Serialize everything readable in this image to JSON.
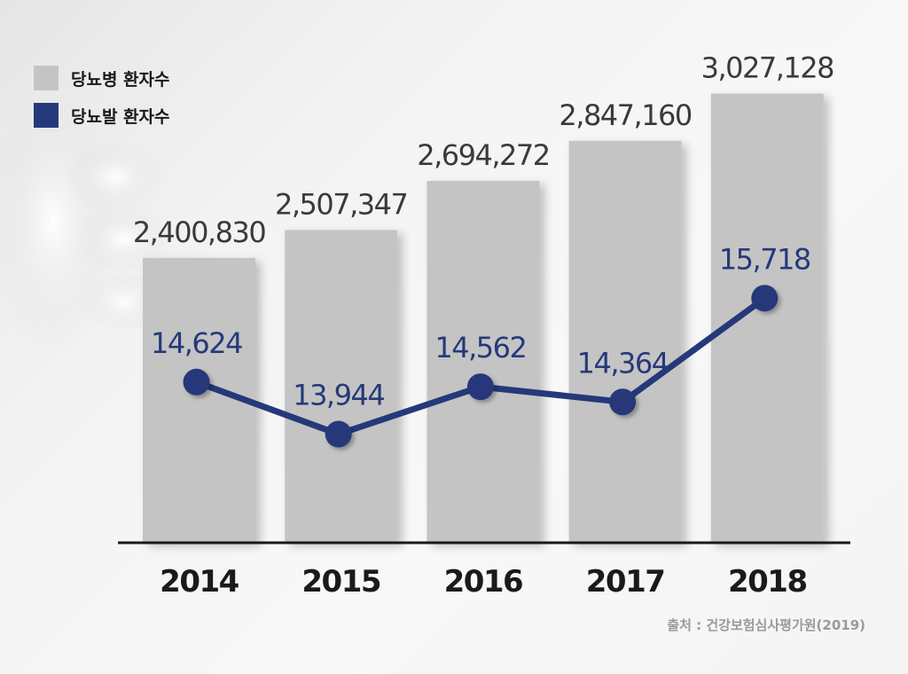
{
  "chart_data": {
    "type": "bar",
    "categories": [
      "2014",
      "2015",
      "2016",
      "2017",
      "2018"
    ],
    "series": [
      {
        "name": "당뇨병 환자수",
        "type": "bar",
        "values": [
          2400830,
          2507347,
          2694272,
          2847160,
          3027128
        ],
        "labels": [
          "2,400,830",
          "2,507,347",
          "2,694,272",
          "2,847,160",
          "3,027,128"
        ],
        "color": "#c4c4c4"
      },
      {
        "name": "당뇨발 환자수",
        "type": "line",
        "values": [
          14624,
          13944,
          14562,
          14364,
          15718
        ],
        "labels": [
          "14,624",
          "13,944",
          "14,562",
          "14,364",
          "15,718"
        ],
        "color": "#25397a"
      }
    ],
    "legend_position": "top-left",
    "grid": false
  },
  "source": "출처 : 건강보험심사평가원(2019)"
}
